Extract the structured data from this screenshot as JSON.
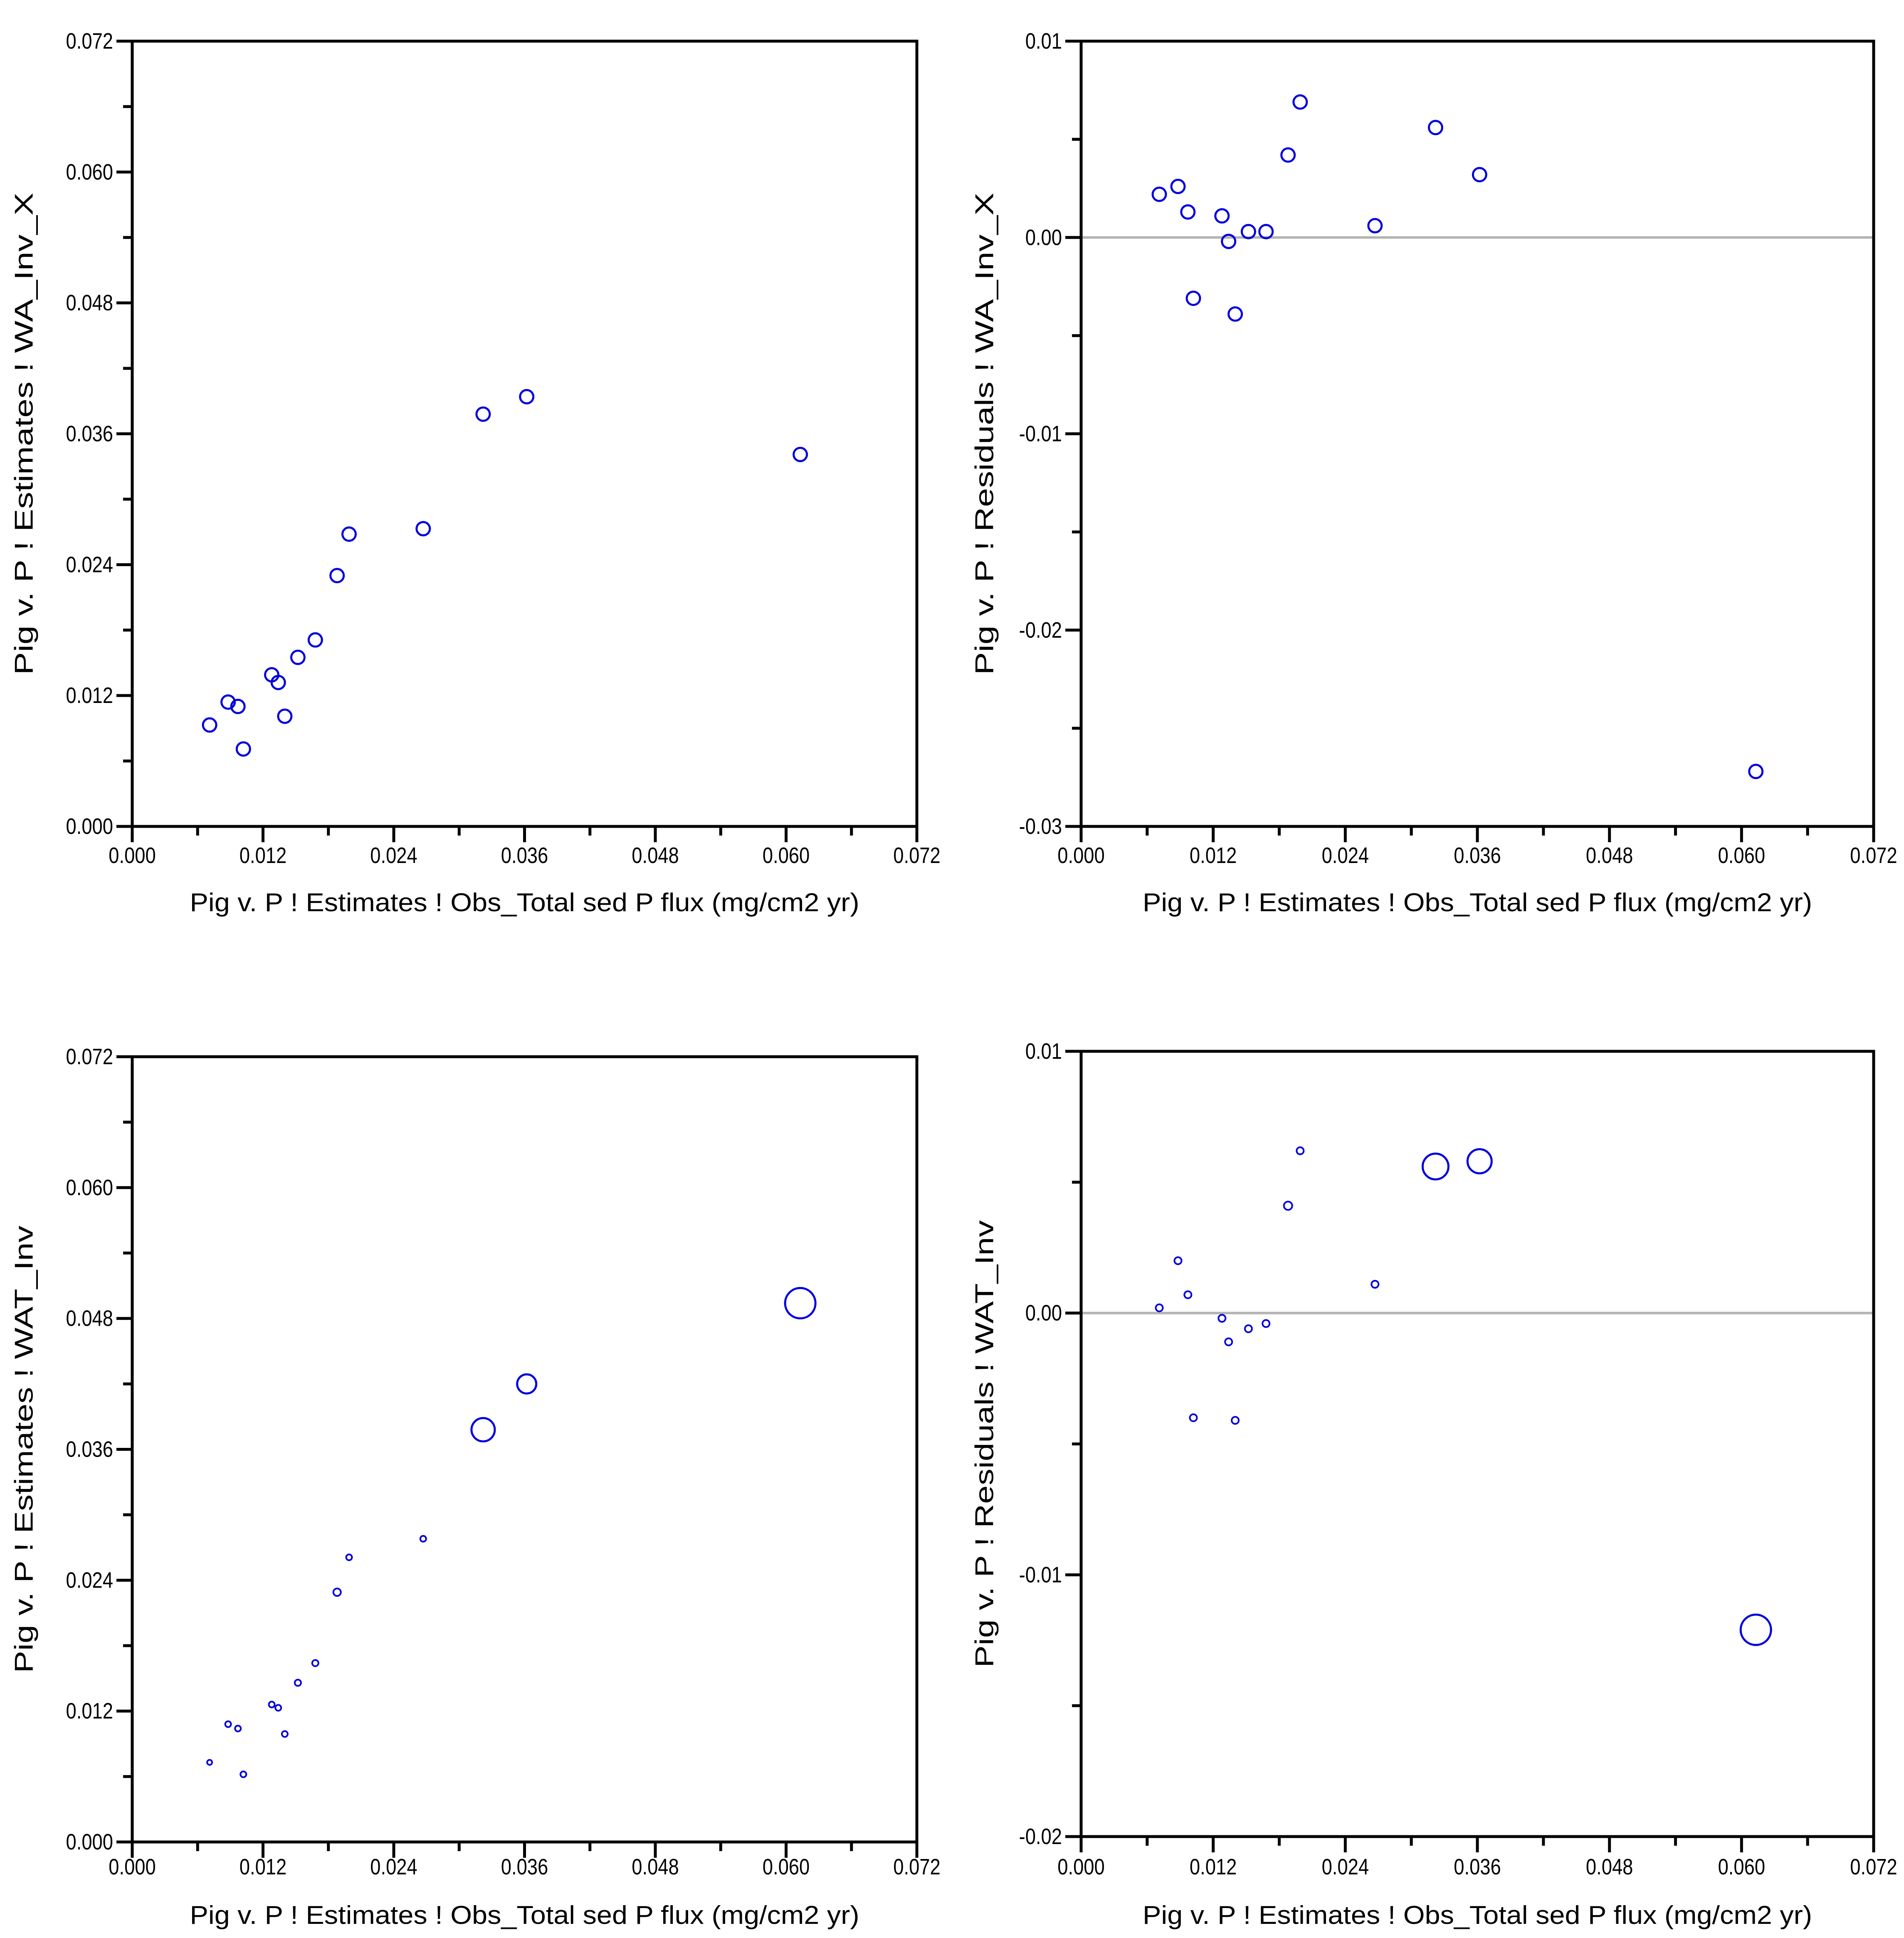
{
  "figure": {
    "colors": {
      "background": "#ffffff",
      "points": "#0000dd",
      "axis": "#000000",
      "zero_line": "#b3b3b3",
      "text": "#000000"
    }
  },
  "chart_data": {
    "type": "scatter",
    "layout": "2x2 grid of scatterplots, shared x-axis variable, no grid lines, no legend",
    "x_axis": {
      "label": "Pig v. P ! Estimates ! Obs_Total sed P flux (mg/cm2 yr)",
      "min": 0.0,
      "max": 0.072,
      "major_step": 0.012,
      "minor_step": 0.006,
      "tick_labels": [
        "0.000",
        "0.012",
        "0.024",
        "0.036",
        "0.048",
        "0.060",
        "0.072"
      ]
    },
    "observed_x": [
      0.0071,
      0.0088,
      0.0097,
      0.0102,
      0.0128,
      0.0134,
      0.014,
      0.0152,
      0.0168,
      0.0188,
      0.0199,
      0.0267,
      0.0322,
      0.0362,
      0.0613
    ],
    "panels": [
      {
        "id": "estimates-wa-inv-x",
        "grid_position": "top-left",
        "y_axis": {
          "label": "Pig v. P ! Estimates ! WA_Inv_X",
          "min": 0.0,
          "max": 0.072,
          "major_step": 0.012,
          "minor_step": 0.006,
          "tick_labels": [
            "0.072",
            "0.060",
            "0.048",
            "0.036",
            "0.024",
            "0.012",
            "0.000"
          ]
        },
        "zero_line": false,
        "marker": {
          "radius": 16
        },
        "y_values": [
          0.0093,
          0.0114,
          0.011,
          0.0071,
          0.0139,
          0.0132,
          0.0101,
          0.0155,
          0.0171,
          0.023,
          0.0268,
          0.0273,
          0.0378,
          0.0394,
          0.0341
        ]
      },
      {
        "id": "residuals-wa-inv-x",
        "grid_position": "top-right",
        "y_axis": {
          "label": "Pig v. P ! Residuals ! WA_Inv_X",
          "min": -0.03,
          "max": 0.01,
          "major_step": 0.01,
          "minor_step": 0.005,
          "tick_labels": [
            "0.01",
            "0.00",
            "-0.01",
            "-0.02",
            "-0.03"
          ]
        },
        "zero_line": true,
        "marker": {
          "radius": 16
        },
        "y_values": [
          0.0022,
          0.0026,
          0.0013,
          -0.0031,
          0.0011,
          -0.0002,
          -0.0039,
          0.0003,
          0.0003,
          0.0042,
          0.0069,
          0.0006,
          0.0056,
          0.0032,
          -0.0272
        ]
      },
      {
        "id": "estimates-wat-inv",
        "grid_position": "bottom-left",
        "y_axis": {
          "label": "Pig v. P ! Estimates ! WAT_Inv",
          "min": 0.0,
          "max": 0.072,
          "major_step": 0.012,
          "minor_step": 0.006,
          "tick_labels": [
            "0.072",
            "0.060",
            "0.048",
            "0.036",
            "0.024",
            "0.012",
            "0.000"
          ]
        },
        "zero_line": false,
        "marker": {
          "radii": [
            6,
            7,
            7,
            7,
            7,
            7,
            7,
            7.5,
            7.5,
            9,
            7,
            7,
            28,
            23,
            36.5
          ]
        },
        "y_values": [
          0.0073,
          0.0108,
          0.0104,
          0.0062,
          0.0126,
          0.0123,
          0.0099,
          0.0146,
          0.0164,
          0.0229,
          0.0261,
          0.0278,
          0.0378,
          0.042,
          0.0494
        ]
      },
      {
        "id": "residuals-wat-inv",
        "grid_position": "bottom-right",
        "y_axis": {
          "label": "Pig v. P ! Residuals ! WAT_Inv",
          "min": -0.02,
          "max": 0.01,
          "major_step": 0.01,
          "minor_step": 0.005,
          "tick_labels": [
            "0.01",
            "0.00",
            "-0.01",
            "-0.02"
          ]
        },
        "zero_line": true,
        "marker": {
          "radii": [
            8.5,
            8.5,
            8.5,
            8.5,
            8.5,
            8.5,
            8.5,
            8.5,
            8.5,
            10,
            8.5,
            8.5,
            31,
            29,
            36.5
          ]
        },
        "y_values": [
          0.0002,
          0.002,
          0.0007,
          -0.004,
          -0.0002,
          -0.0011,
          -0.0041,
          -0.0006,
          -0.0004,
          0.0041,
          0.0062,
          0.0011,
          0.0056,
          0.0058,
          -0.0121
        ]
      }
    ]
  }
}
